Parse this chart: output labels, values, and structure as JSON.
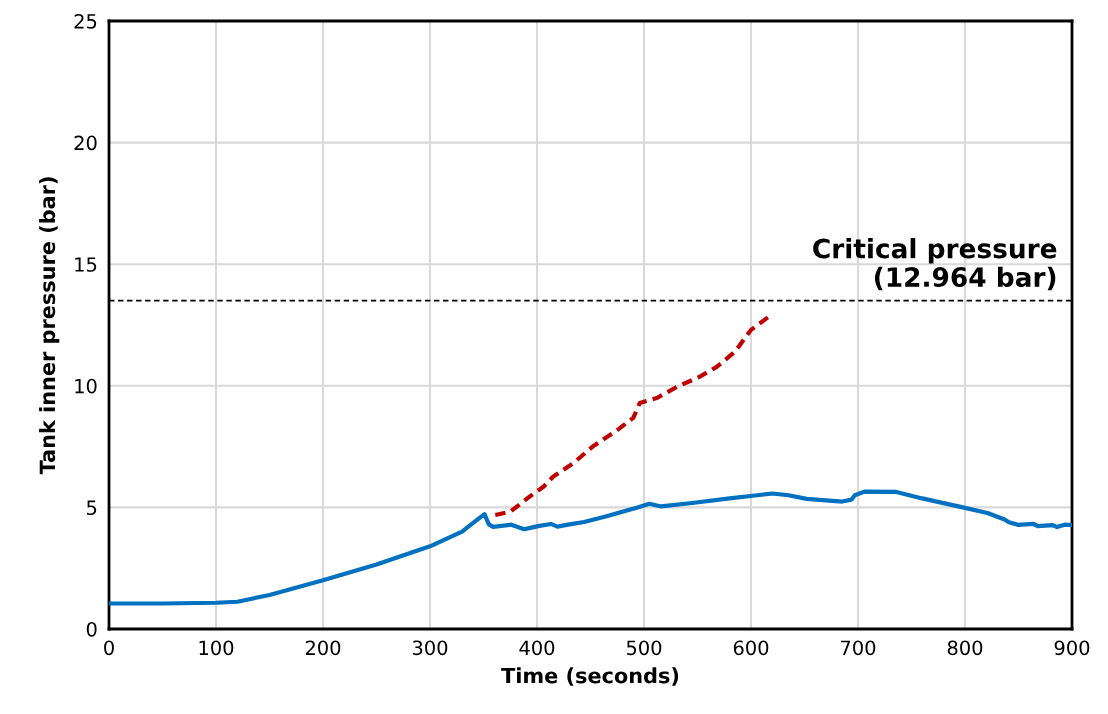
{
  "chart_data": {
    "type": "line",
    "xlabel": "Time (seconds)",
    "ylabel": "Tank inner pressure (bar)",
    "xlim": [
      0,
      900
    ],
    "xticks": [
      0,
      100,
      200,
      300,
      400,
      500,
      600,
      700,
      800,
      900
    ],
    "ylim": [
      0,
      25
    ],
    "yticks": [
      0,
      5,
      10,
      15,
      20,
      25
    ],
    "grid": true,
    "series": [
      {
        "color": "#0070c0",
        "line_style": "solid",
        "x": [
          0,
          50,
          100,
          120,
          150,
          200,
          250,
          300,
          330,
          340,
          351,
          355,
          359,
          376,
          388,
          401,
          413,
          419,
          429,
          444,
          465,
          494,
          505,
          516,
          545,
          580,
          620,
          635,
          652,
          685,
          694,
          697,
          706,
          735,
          760,
          800,
          821,
          837,
          841,
          850,
          864,
          868,
          882,
          886,
          893,
          900
        ],
        "values": [
          1.05,
          1.05,
          1.08,
          1.12,
          1.4,
          2.0,
          2.65,
          3.4,
          4.0,
          4.35,
          4.72,
          4.3,
          4.2,
          4.29,
          4.1,
          4.23,
          4.32,
          4.21,
          4.29,
          4.4,
          4.64,
          5.0,
          5.15,
          5.04,
          5.18,
          5.37,
          5.57,
          5.5,
          5.35,
          5.24,
          5.32,
          5.5,
          5.65,
          5.64,
          5.37,
          4.98,
          4.77,
          4.5,
          4.39,
          4.28,
          4.32,
          4.23,
          4.27,
          4.19,
          4.29,
          4.27
        ]
      },
      {
        "color": "#c00000",
        "line_style": "dashed",
        "x": [
          361,
          375,
          393,
          406,
          415,
          434,
          452,
          475,
          490,
          496,
          512,
          531,
          552,
          568,
          585,
          600,
          620
        ],
        "values": [
          4.69,
          4.82,
          5.44,
          5.85,
          6.26,
          6.82,
          7.5,
          8.18,
          8.68,
          9.29,
          9.5,
          9.96,
          10.37,
          10.78,
          11.4,
          12.3,
          12.95
        ]
      }
    ],
    "ref_lines": [
      {
        "axis": "y",
        "value": 13.5,
        "label": "Critical pressure\n(12.964 bar)",
        "color": "#000000",
        "line_style": "dashed"
      }
    ]
  }
}
